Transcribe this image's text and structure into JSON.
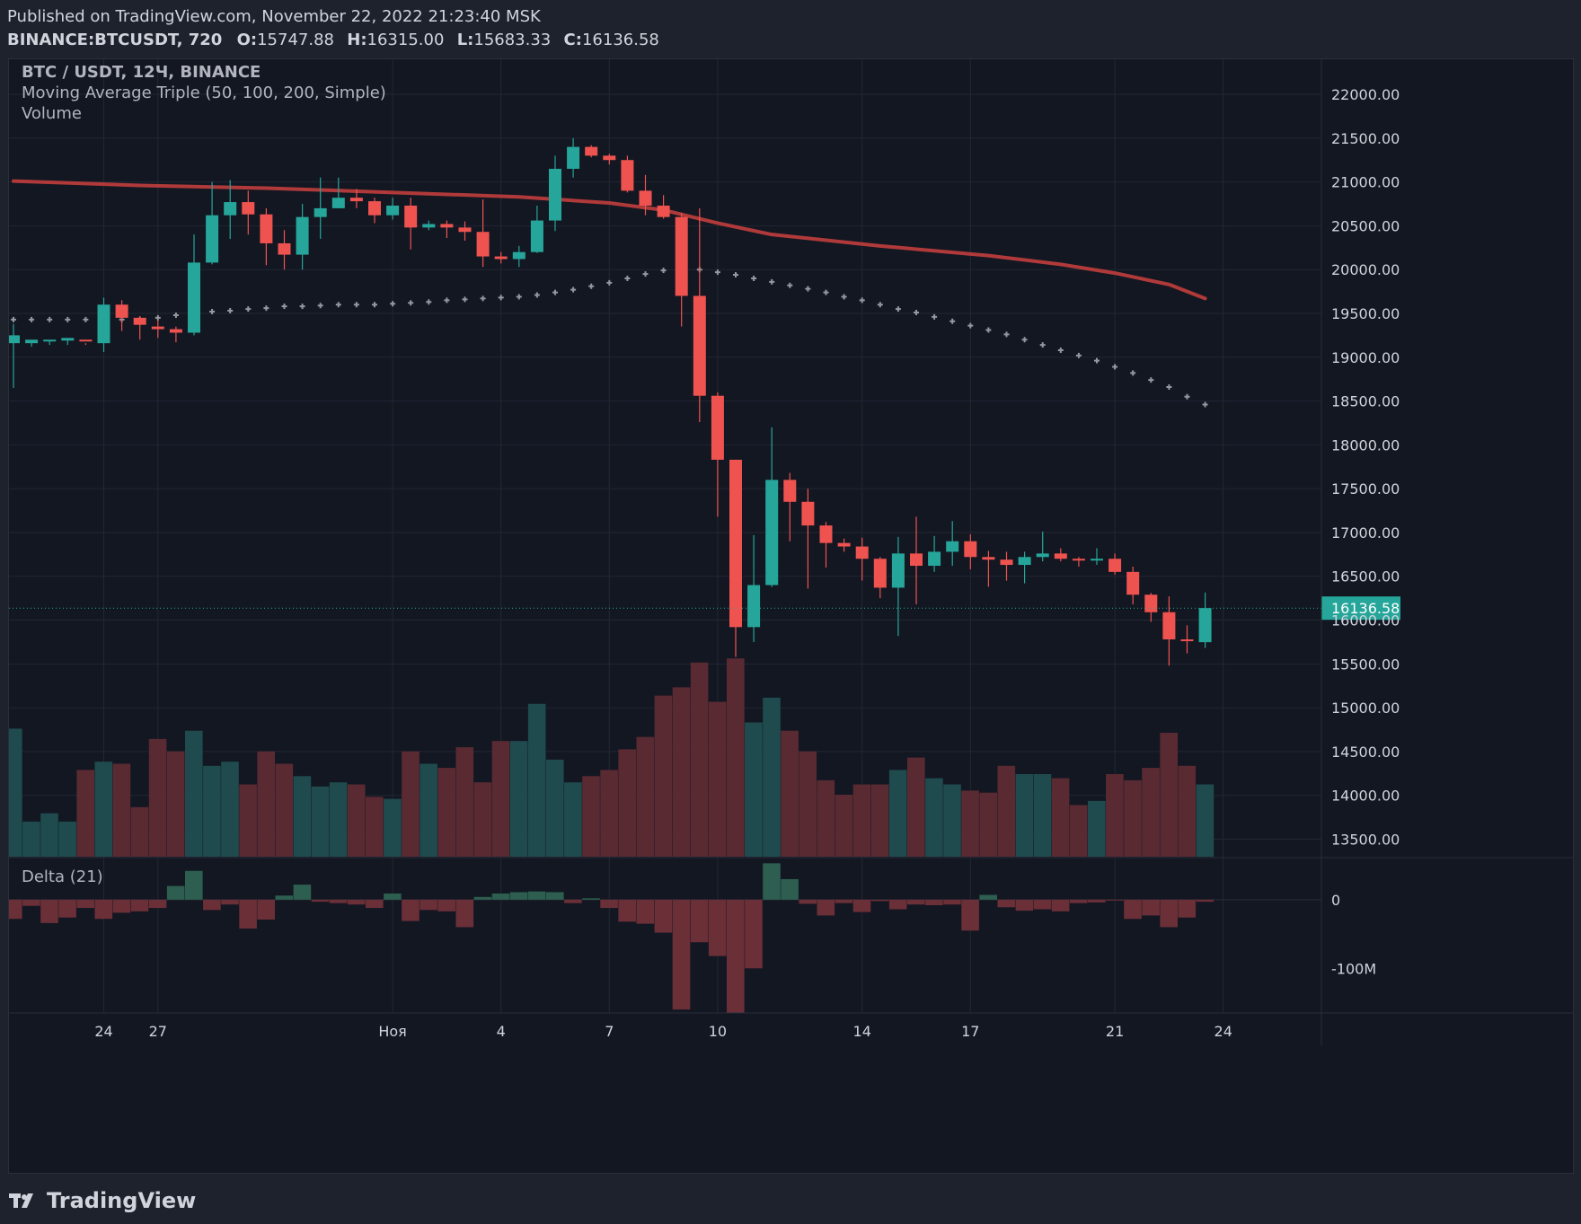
{
  "header": {
    "published": "Published on TradingView.com, November 22, 2022 21:23:40 MSK",
    "symbol_line": "BINANCE:BTCUSDT, 720",
    "o_label": "O:",
    "o_value": "15747.88",
    "h_label": "H:",
    "h_value": "16315.00",
    "l_label": "L:",
    "l_value": "15683.33",
    "c_label": "C:",
    "c_value": "16136.58"
  },
  "legend": {
    "symbol": "BTC / USDT, 12Ч, BINANCE",
    "ma": "Moving Average Triple (50, 100, 200, Simple)",
    "volume": "Volume",
    "delta": "Delta (21)"
  },
  "footer": {
    "brand": "TradingView",
    "logo_icon": "tradingview-logo-icon"
  },
  "colors": {
    "up": "#26a69a",
    "down": "#ef5350",
    "vol_up": "#1f4b4e",
    "vol_down": "#5a2a33",
    "ma200": "#b03a3a",
    "ma100": "#9598a1",
    "price_tag": "#26a69a",
    "grid": "#232733",
    "background": "#131722"
  },
  "chart_data": {
    "type": "candlestick",
    "symbol": "BTC / USDT",
    "interval": "12Ч",
    "exchange": "BINANCE",
    "y_axis": {
      "ylim": [
        13300,
        22400
      ],
      "ticks": [
        "22000.00",
        "21500.00",
        "21000.00",
        "20500.00",
        "20000.00",
        "19500.00",
        "19000.00",
        "18500.00",
        "18000.00",
        "17500.00",
        "17000.00",
        "16500.00",
        "16000.00",
        "15500.00",
        "15000.00",
        "14500.00",
        "14000.00",
        "13500.00"
      ],
      "tick_values": [
        22000,
        21500,
        21000,
        20500,
        20000,
        19500,
        19000,
        18500,
        18000,
        17500,
        17000,
        16500,
        16000,
        15500,
        15000,
        14500,
        14000,
        13500
      ],
      "last_price_label": "16136.58",
      "last_price": 16136.58
    },
    "x_axis": {
      "labels": [
        "24",
        "27",
        "Ноя",
        "4",
        "7",
        "10",
        "14",
        "17",
        "21",
        "24"
      ],
      "label_bar_index": [
        5,
        8,
        21,
        27,
        33,
        39,
        47,
        53,
        61,
        67
      ]
    },
    "candles": [
      [
        19160,
        19250,
        18650,
        19380
      ],
      [
        19160,
        19200,
        19120,
        19180
      ],
      [
        19180,
        19200,
        19140,
        19190
      ],
      [
        19190,
        19220,
        19140,
        19200
      ],
      [
        19200,
        19190,
        19140,
        19160
      ],
      [
        19160,
        19600,
        19060,
        19680
      ],
      [
        19600,
        19450,
        19300,
        19650
      ],
      [
        19450,
        19370,
        19200,
        19470
      ],
      [
        19350,
        19320,
        19220,
        19420
      ],
      [
        19320,
        19280,
        19170,
        19350
      ],
      [
        19280,
        20080,
        19250,
        20400
      ],
      [
        20080,
        20620,
        20060,
        21000
      ],
      [
        20620,
        20770,
        20350,
        21020
      ],
      [
        20770,
        20630,
        20400,
        20900
      ],
      [
        20630,
        20300,
        20050,
        20700
      ],
      [
        20300,
        20170,
        20000,
        20450
      ],
      [
        20170,
        20600,
        20000,
        20750
      ],
      [
        20600,
        20700,
        20350,
        21050
      ],
      [
        20700,
        20820,
        20700,
        21050
      ],
      [
        20820,
        20780,
        20700,
        20920
      ],
      [
        20780,
        20620,
        20530,
        20820
      ],
      [
        20620,
        20730,
        20570,
        20820
      ],
      [
        20730,
        20480,
        20230,
        20820
      ],
      [
        20480,
        20520,
        20450,
        20560
      ],
      [
        20520,
        20480,
        20360,
        20560
      ],
      [
        20480,
        20430,
        20330,
        20550
      ],
      [
        20430,
        20150,
        20030,
        20800
      ],
      [
        20150,
        20120,
        20070,
        20200
      ],
      [
        20120,
        20200,
        20030,
        20270
      ],
      [
        20200,
        20560,
        20190,
        20730
      ],
      [
        20560,
        21150,
        20440,
        21300
      ],
      [
        21150,
        21400,
        21050,
        21500
      ],
      [
        21400,
        21300,
        21280,
        21420
      ],
      [
        21300,
        21250,
        21200,
        21320
      ],
      [
        21250,
        20900,
        20880,
        21300
      ],
      [
        20900,
        20730,
        20620,
        21080
      ],
      [
        20730,
        20600,
        20580,
        20850
      ],
      [
        20600,
        19700,
        19350,
        20650
      ],
      [
        19700,
        18560,
        18260,
        20700
      ],
      [
        18560,
        17830,
        17180,
        18600
      ],
      [
        17830,
        15920,
        15580,
        17830
      ],
      [
        15920,
        16400,
        15750,
        16970
      ],
      [
        16400,
        17600,
        16380,
        18200
      ],
      [
        17600,
        17350,
        16900,
        17680
      ],
      [
        17350,
        17080,
        16360,
        17500
      ],
      [
        17080,
        16880,
        16600,
        17120
      ],
      [
        16880,
        16840,
        16780,
        16930
      ],
      [
        16840,
        16700,
        16450,
        16940
      ],
      [
        16700,
        16370,
        16250,
        16720
      ],
      [
        16370,
        16760,
        15820,
        16950
      ],
      [
        16760,
        16620,
        16180,
        17180
      ],
      [
        16620,
        16780,
        16550,
        16960
      ],
      [
        16780,
        16900,
        16620,
        17130
      ],
      [
        16900,
        16720,
        16580,
        16980
      ],
      [
        16720,
        16690,
        16380,
        16790
      ],
      [
        16690,
        16630,
        16450,
        16780
      ],
      [
        16630,
        16720,
        16420,
        16780
      ],
      [
        16720,
        16760,
        16670,
        17010
      ],
      [
        16760,
        16700,
        16670,
        16820
      ],
      [
        16700,
        16690,
        16610,
        16720
      ],
      [
        16690,
        16700,
        16630,
        16820
      ],
      [
        16700,
        16550,
        16520,
        16760
      ],
      [
        16550,
        16290,
        16180,
        16610
      ],
      [
        16290,
        16090,
        15980,
        16310
      ],
      [
        16090,
        15780,
        15480,
        16270
      ],
      [
        15780,
        15760,
        15620,
        15940
      ],
      [
        15748,
        16137,
        15683,
        16315
      ]
    ],
    "ma200": [
      21010,
      20960,
      20930,
      20880,
      20830,
      20760,
      20680,
      20530,
      20400,
      20270,
      20160,
      20060,
      19960,
      19830,
      19670
    ],
    "ma200_bar_index": [
      0,
      7,
      14,
      21,
      28,
      33,
      36,
      39,
      42,
      48,
      54,
      58,
      61,
      64,
      66
    ],
    "ma100": [
      19430,
      19430,
      19430,
      19430,
      19430,
      19430,
      19430,
      19430,
      19450,
      19480,
      19500,
      19520,
      19530,
      19550,
      19560,
      19580,
      19580,
      19590,
      19600,
      19600,
      19600,
      19610,
      19620,
      19630,
      19650,
      19660,
      19670,
      19680,
      19690,
      19710,
      19740,
      19770,
      19810,
      19850,
      19900,
      19950,
      19990,
      20010,
      20000,
      19970,
      19940,
      19900,
      19860,
      19820,
      19780,
      19740,
      19690,
      19650,
      19600,
      19550,
      19510,
      19460,
      19410,
      19360,
      19310,
      19260,
      19200,
      19140,
      19080,
      19020,
      18960,
      18890,
      18820,
      18740,
      18660,
      18550,
      18460
    ],
    "volume": [
      0.62,
      0.17,
      0.21,
      0.17,
      0.42,
      0.46,
      0.45,
      0.24,
      0.57,
      0.51,
      0.61,
      0.44,
      0.46,
      0.35,
      0.51,
      0.45,
      0.39,
      0.34,
      0.36,
      0.35,
      0.29,
      0.28,
      0.51,
      0.45,
      0.43,
      0.53,
      0.36,
      0.56,
      0.56,
      0.74,
      0.47,
      0.36,
      0.39,
      0.42,
      0.52,
      0.58,
      0.78,
      0.82,
      0.94,
      0.75,
      0.96,
      0.65,
      0.77,
      0.61,
      0.51,
      0.37,
      0.3,
      0.35,
      0.35,
      0.42,
      0.48,
      0.38,
      0.35,
      0.32,
      0.31,
      0.44,
      0.4,
      0.4,
      0.38,
      0.25,
      0.27,
      0.4,
      0.37,
      0.43,
      0.6,
      0.44,
      0.35
    ],
    "volume_scale": "relative",
    "delta": {
      "ticks": [
        "0",
        "-100M"
      ],
      "tick_values": [
        0,
        -100
      ],
      "unit": "M",
      "ylim": [
        -165,
        60
      ],
      "values": [
        -28,
        -9,
        -34,
        -26,
        -12,
        -28,
        -19,
        -17,
        -12,
        20,
        42,
        -15,
        -7,
        -42,
        -29,
        6,
        22,
        -3,
        -5,
        -7,
        -12,
        9,
        -31,
        -15,
        -17,
        -40,
        4,
        9,
        11,
        12,
        11,
        -5,
        2,
        -12,
        -32,
        -35,
        -48,
        -160,
        -62,
        -82,
        -165,
        -100,
        53,
        30,
        -6,
        -23,
        -5,
        -18,
        -2,
        -14,
        -7,
        -8,
        -7,
        -45,
        7,
        -11,
        -16,
        -14,
        -17,
        -5,
        -4,
        -1,
        -28,
        -23,
        -40,
        -26,
        -3
      ]
    }
  }
}
